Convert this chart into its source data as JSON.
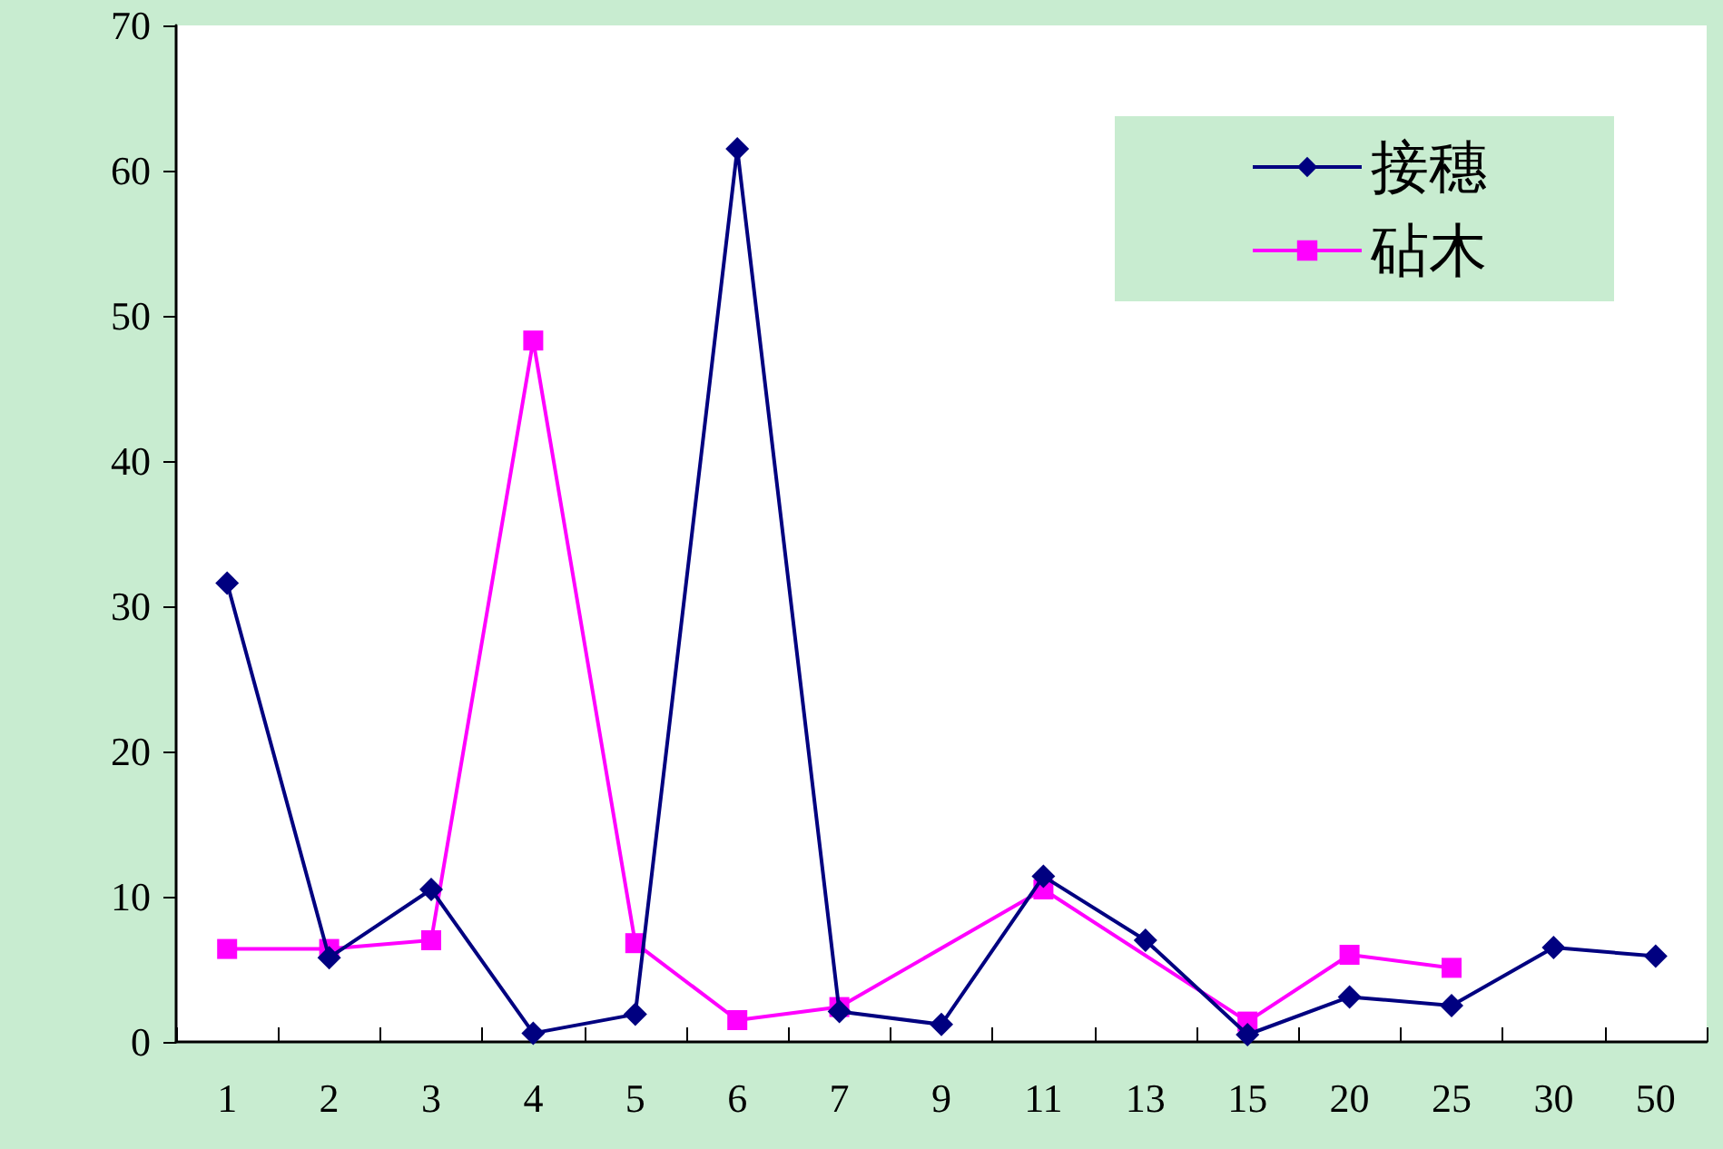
{
  "chart_data": {
    "type": "line",
    "categories": [
      "1",
      "2",
      "3",
      "4",
      "5",
      "6",
      "7",
      "9",
      "11",
      "13",
      "15",
      "20",
      "25",
      "30",
      "50"
    ],
    "series": [
      {
        "name": "接穗",
        "color": "#000080",
        "marker": "diamond",
        "values": [
          31.6,
          5.8,
          10.5,
          0.6,
          1.9,
          61.5,
          2.1,
          1.2,
          11.4,
          7.0,
          0.5,
          3.1,
          2.5,
          6.5,
          5.9
        ]
      },
      {
        "name": "砧木",
        "color": "#ff00ff",
        "marker": "square",
        "values": [
          6.4,
          6.4,
          7.0,
          48.3,
          6.8,
          1.5,
          2.4,
          null,
          10.5,
          null,
          1.4,
          6.0,
          5.1,
          null,
          null
        ]
      }
    ],
    "ylim": [
      0,
      70
    ],
    "yticks": [
      0,
      10,
      20,
      30,
      40,
      50,
      60,
      70
    ],
    "grid": false,
    "legend": "top right"
  }
}
